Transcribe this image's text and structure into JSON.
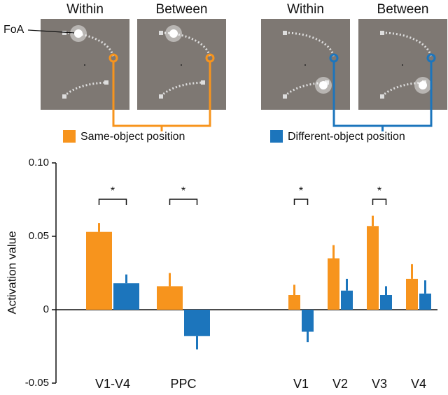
{
  "panels": [
    {
      "title": "Within"
    },
    {
      "title": "Between"
    },
    {
      "title": "Within"
    },
    {
      "title": "Between"
    }
  ],
  "foa_label": "FoA",
  "chart_data": {
    "type": "bar",
    "categories": [
      "V1-V4",
      "PPC",
      "V1",
      "V2",
      "V3",
      "V4"
    ],
    "series": [
      {
        "name": "Same-object position",
        "color": "#f7941d",
        "values": [
          0.053,
          0.016,
          0.01,
          0.035,
          0.057,
          0.021
        ],
        "errors": [
          0.006,
          0.009,
          0.007,
          0.009,
          0.007,
          0.01
        ]
      },
      {
        "name": "Different-object position",
        "color": "#1c75bc",
        "values": [
          0.018,
          -0.018,
          -0.015,
          0.013,
          0.01,
          0.011
        ],
        "errors": [
          0.006,
          0.009,
          0.007,
          0.008,
          0.006,
          0.009
        ]
      }
    ],
    "significance_labels": [
      "*",
      "*",
      "*",
      null,
      "*",
      null
    ],
    "y_label": "Activation value",
    "ylim": [
      -0.05,
      0.1
    ],
    "yticks": [
      -0.05,
      0,
      0.05,
      {
        "value": 0.1,
        "label": "0.10"
      }
    ]
  }
}
